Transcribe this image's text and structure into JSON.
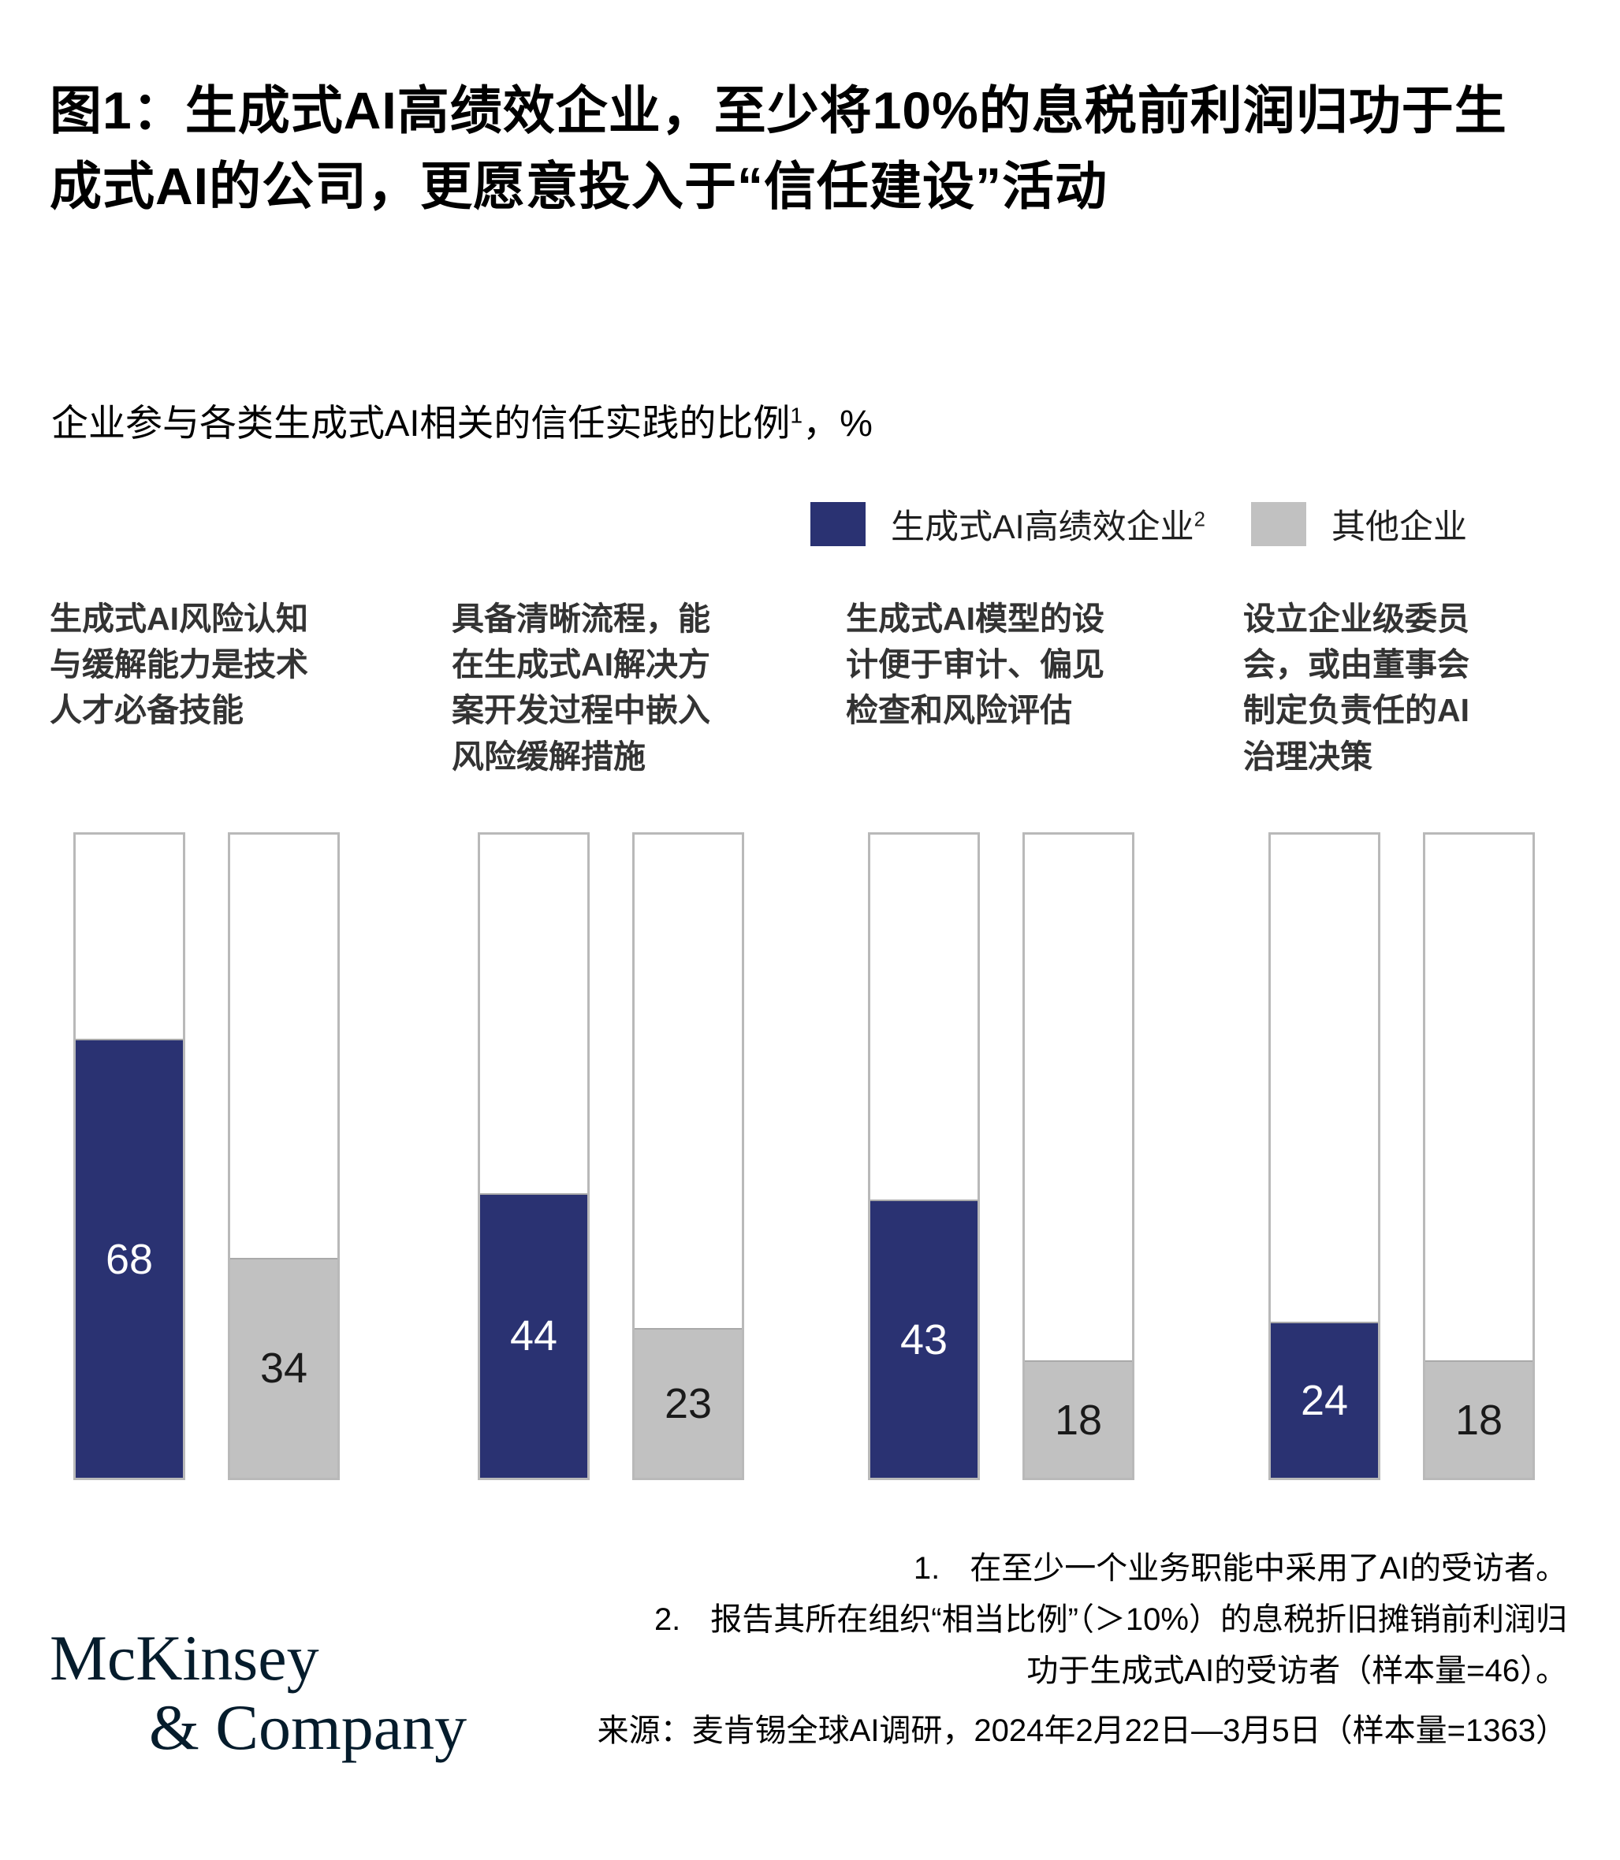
{
  "title": "图1：生成式AI高绩效企业，至少将10%的息税前利润归功于生成式AI的公司，更愿意投入于“信任建设”活动",
  "subtitle": {
    "text": "企业参与各类生成式AI相关的信任实践的比例",
    "sup": "1",
    "suffix": "，%"
  },
  "legend": {
    "items": [
      {
        "label": "生成式AI高绩效企业",
        "sup": "2",
        "color": "#2a3272"
      },
      {
        "label": "其他企业",
        "sup": "",
        "color": "#c1c1c1"
      }
    ]
  },
  "chart_data": {
    "type": "bar",
    "unit": "%",
    "orientation": "vertical",
    "ylim": [
      0,
      100
    ],
    "grid": false,
    "legend_position": "top-right",
    "title": "企业参与各类生成式AI相关的信任实践的比例，%",
    "categories": [
      "生成式AI风险认知与缓解能力是技术人才必备技能",
      "具备清晰流程，能在生成式AI解决方案开发过程中嵌入风险缓解措施",
      "生成式AI模型的设计便于审计、偏见检查和风险评估",
      "设立企业级委员会，或由董事会制定负责任的AI治理决策"
    ],
    "categories_lines": [
      [
        "生成式AI风险认知",
        "与缓解能力是技术",
        "人才必备技能"
      ],
      [
        "具备清晰流程，能",
        "在生成式AI解决方",
        "案开发过程中嵌入",
        "风险缓解措施"
      ],
      [
        "生成式AI模型的设",
        "计便于审计、偏见",
        "检查和风险评估"
      ],
      [
        "设立企业级委员",
        "会，或由董事会",
        "制定负责任的AI",
        "治理决策"
      ]
    ],
    "series": [
      {
        "name": "生成式AI高绩效企业",
        "color": "#2a3272",
        "label_color": "#ffffff",
        "values": [
          68,
          44,
          43,
          24
        ]
      },
      {
        "name": "其他企业",
        "color": "#c1c1c1",
        "label_color": "#1a1a1a",
        "values": [
          34,
          23,
          18,
          18
        ]
      }
    ]
  },
  "notes": {
    "note1": {
      "marker": "1.",
      "text": "在至少一个业务职能中采用了AI的受访者。"
    },
    "note2": {
      "marker": "2.",
      "line1": "报告其所在组织“相当比例”（＞10%）的息税折旧摊销前利润归",
      "line2": "功于生成式AI的受访者（样本量=46）。"
    },
    "source": "来源：麦肯锡全球AI调研，2024年2月22日—3月5日（样本量=1363）"
  },
  "logo": {
    "line1": "McKinsey",
    "line2": "& Company",
    "color": "#051c2c"
  }
}
